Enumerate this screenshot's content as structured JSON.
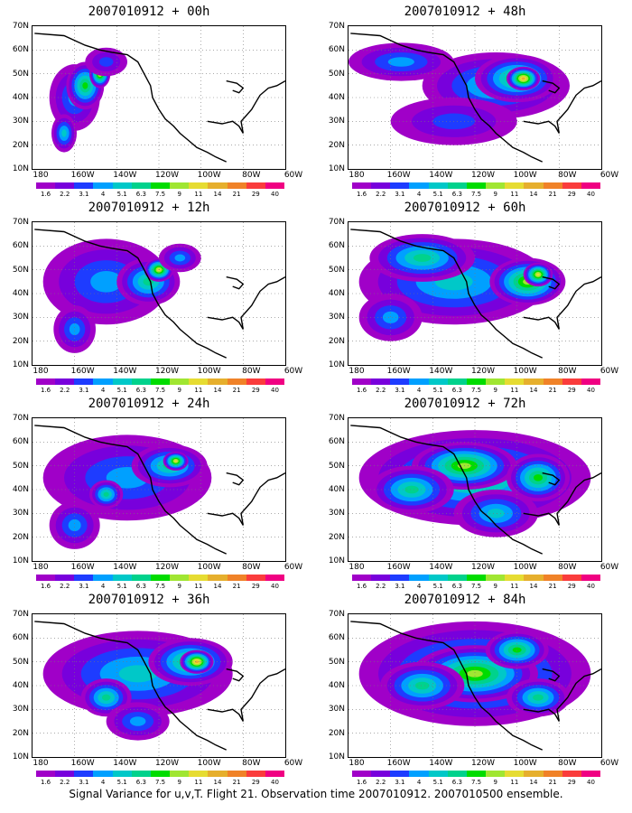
{
  "panels": [
    {
      "title": "2007010912 + 00h",
      "col": 0,
      "row": 0
    },
    {
      "title": "2007010912 + 48h",
      "col": 1,
      "row": 0
    },
    {
      "title": "2007010912 + 12h",
      "col": 0,
      "row": 1
    },
    {
      "title": "2007010912 + 60h",
      "col": 1,
      "row": 1
    },
    {
      "title": "2007010912 + 24h",
      "col": 0,
      "row": 2
    },
    {
      "title": "2007010912 + 72h",
      "col": 1,
      "row": 2
    },
    {
      "title": "2007010912 + 36h",
      "col": 0,
      "row": 3
    },
    {
      "title": "2007010912 + 84h",
      "col": 1,
      "row": 3
    }
  ],
  "y_labels": [
    "70N",
    "60N",
    "50N",
    "40N",
    "30N",
    "20N",
    "10N"
  ],
  "x_labels": [
    "180",
    "160W",
    "140W",
    "120W",
    "100W",
    "80W",
    "60W"
  ],
  "colorbar": {
    "labels": [
      "1.6",
      "2.2",
      "3.1",
      "4",
      "5.1",
      "6.3",
      "7.5",
      "9",
      "11",
      "14",
      "21",
      "29",
      "40"
    ],
    "colors": [
      "#a000c8",
      "#7800dc",
      "#1e3cff",
      "#00a0ff",
      "#00c8c8",
      "#00d28c",
      "#00dc00",
      "#a0e632",
      "#e6dc32",
      "#e6af2d",
      "#f08228",
      "#fa3c3c",
      "#f00082"
    ]
  },
  "caption": "Signal Variance for u,v,T. Flight 21. Observation time 2007010912. 2007010500 ensemble."
}
